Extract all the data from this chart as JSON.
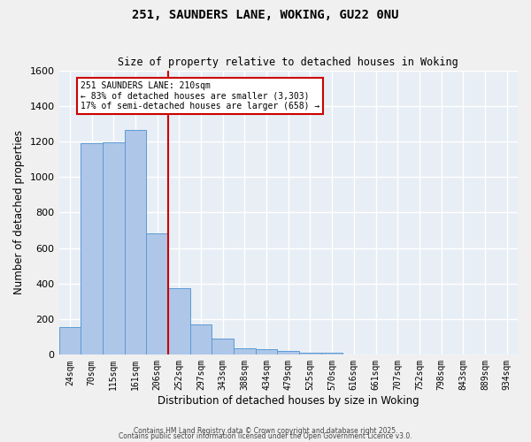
{
  "title1": "251, SAUNDERS LANE, WOKING, GU22 0NU",
  "title2": "Size of property relative to detached houses in Woking",
  "xlabel": "Distribution of detached houses by size in Woking",
  "ylabel": "Number of detached properties",
  "categories": [
    "24sqm",
    "70sqm",
    "115sqm",
    "161sqm",
    "206sqm",
    "252sqm",
    "297sqm",
    "343sqm",
    "388sqm",
    "434sqm",
    "479sqm",
    "525sqm",
    "570sqm",
    "616sqm",
    "661sqm",
    "707sqm",
    "752sqm",
    "798sqm",
    "843sqm",
    "889sqm",
    "934sqm"
  ],
  "values": [
    155,
    1190,
    1195,
    1265,
    685,
    375,
    170,
    90,
    38,
    32,
    20,
    12,
    10,
    0,
    0,
    0,
    0,
    0,
    0,
    0,
    0
  ],
  "bar_color": "#aec6e8",
  "bar_edge_color": "#5b9bd5",
  "vline_x": 4.5,
  "vline_color": "#cc0000",
  "annotation_text": "251 SAUNDERS LANE: 210sqm\n← 83% of detached houses are smaller (3,303)\n17% of semi-detached houses are larger (658) →",
  "annotation_box_color": "#ffffff",
  "annotation_box_edge": "#cc0000",
  "ylim": [
    0,
    1600
  ],
  "yticks": [
    0,
    200,
    400,
    600,
    800,
    1000,
    1200,
    1400,
    1600
  ],
  "bg_color": "#e8eef5",
  "grid_color": "#ffffff",
  "footer1": "Contains HM Land Registry data © Crown copyright and database right 2025.",
  "footer2": "Contains public sector information licensed under the Open Government Licence v3.0."
}
